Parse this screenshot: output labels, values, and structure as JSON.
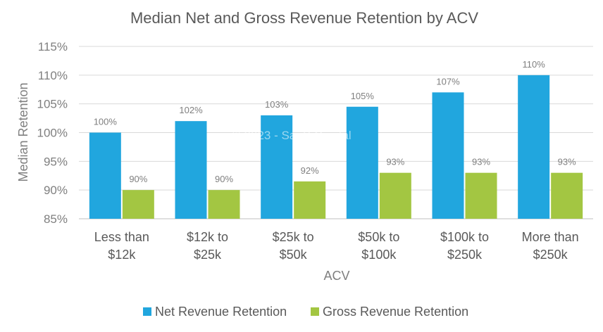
{
  "chart_data": {
    "type": "bar",
    "title": "Median Net and Gross Revenue Retention by ACV",
    "xlabel": "ACV",
    "ylabel": "Median Retention",
    "categories": [
      [
        "Less than",
        "$12k"
      ],
      [
        "$12k to",
        "$25k"
      ],
      [
        "$25k to",
        "$50k"
      ],
      [
        "$50k to",
        "$100k"
      ],
      [
        "$100k to",
        "$250k"
      ],
      [
        "More than",
        "$250k"
      ]
    ],
    "ylim": [
      85,
      115
    ],
    "yticks": [
      85,
      90,
      95,
      100,
      105,
      110,
      115
    ],
    "ytick_labels": [
      "85%",
      "90%",
      "95%",
      "100%",
      "105%",
      "110%",
      "115%"
    ],
    "grid": true,
    "legend_position": "bottom",
    "series": [
      {
        "name": "Net Revenue Retention",
        "color": "#21a6de",
        "values": [
          100,
          102,
          103,
          104.5,
          107,
          110
        ],
        "labels": [
          "100%",
          "102%",
          "103%",
          "105%",
          "107%",
          "110%"
        ]
      },
      {
        "name": "Gross Revenue Retention",
        "color": "#a3c642",
        "values": [
          90,
          90,
          91.5,
          93,
          93,
          93
        ],
        "labels": [
          "90%",
          "90%",
          "92%",
          "93%",
          "93%",
          "93%"
        ]
      }
    ]
  },
  "watermark": "© 2023 - SaaS Capital"
}
